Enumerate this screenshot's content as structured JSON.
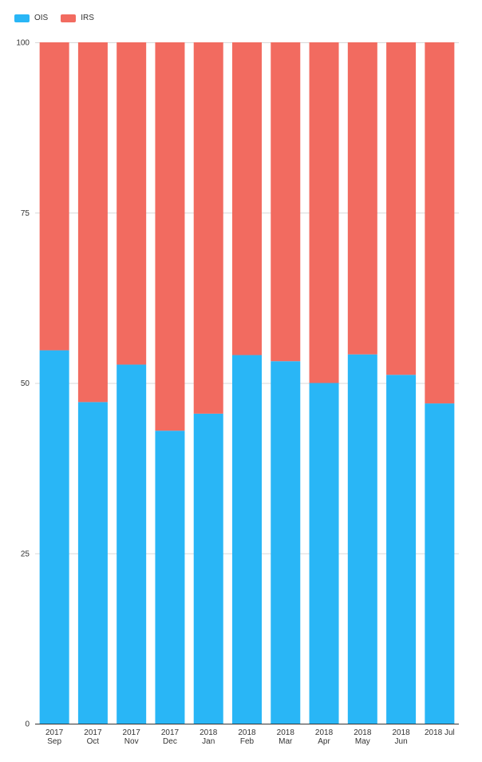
{
  "chart_data": {
    "type": "bar",
    "stacked": true,
    "legend_position": "top-left",
    "categories": [
      [
        "2017",
        "Sep"
      ],
      [
        "2017",
        "Oct"
      ],
      [
        "2017",
        "Nov"
      ],
      [
        "2017",
        "Dec"
      ],
      [
        "2018",
        "Jan"
      ],
      [
        "2018",
        "Feb"
      ],
      [
        "2018",
        "Mar"
      ],
      [
        "2018",
        "Apr"
      ],
      [
        "2018",
        "May"
      ],
      [
        "2018",
        "Jun"
      ],
      [
        "2018 Jul"
      ]
    ],
    "series": [
      {
        "name": "OIS",
        "color": "#29b6f6",
        "values": [
          54.8,
          47.2,
          52.7,
          43.0,
          45.5,
          54.1,
          53.2,
          50.0,
          54.2,
          51.2,
          47.0
        ]
      },
      {
        "name": "IRS",
        "color": "#f26b60",
        "values": [
          45.2,
          52.8,
          47.3,
          57.0,
          54.5,
          45.9,
          46.8,
          50.0,
          45.8,
          48.8,
          53.0
        ]
      }
    ],
    "ylim": [
      0,
      100
    ],
    "yticks": [
      "0",
      "25",
      "50",
      "75",
      "100"
    ],
    "grid": true
  }
}
